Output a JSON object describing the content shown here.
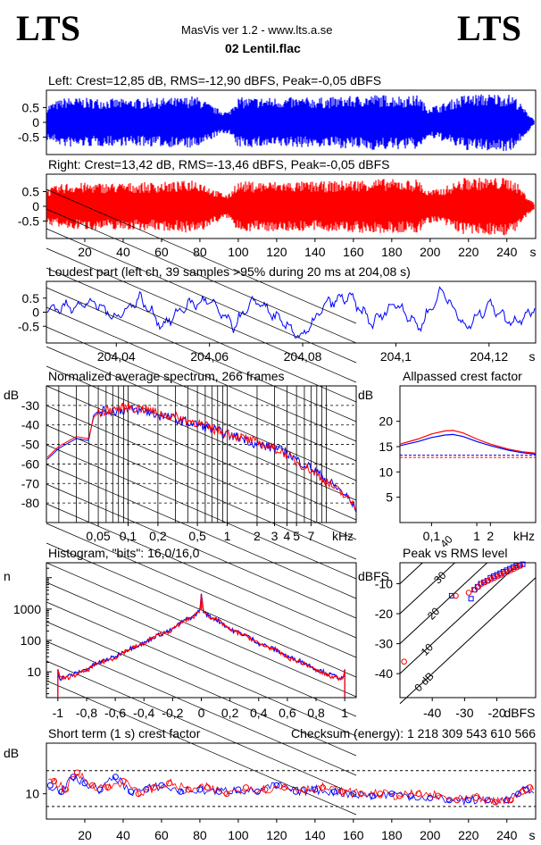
{
  "header": {
    "brand_left": "LTS",
    "brand_right": "LTS",
    "app": "MasVis ver 1.2 - www.lts.a.se",
    "file": "02 Lentil.flac"
  },
  "colors": {
    "left": "#0000ff",
    "right": "#ff0000",
    "bg": "#ffffff"
  },
  "chart_data": [
    {
      "id": "left-waveform",
      "type": "area",
      "title": "Left: Crest=12,85 dB, RMS=-12,90 dBFS, Peak=-0,05 dBFS",
      "y_ticks": [
        "0.5",
        "0",
        "-0.5"
      ],
      "ylim": [
        -1,
        1
      ],
      "xlim": [
        0,
        255
      ],
      "envelope_x": [
        0,
        10,
        40,
        70,
        76,
        80,
        88,
        95,
        99,
        120,
        145,
        160,
        172,
        190,
        194,
        198,
        205,
        212,
        218,
        232,
        240,
        244,
        250,
        255
      ],
      "envelope_y": [
        0.6,
        0.85,
        0.8,
        0.85,
        0.9,
        0.85,
        0.5,
        0.35,
        0.85,
        0.85,
        0.85,
        0.9,
        0.95,
        0.9,
        0.95,
        0.55,
        0.6,
        0.8,
        0.95,
        0.98,
        0.98,
        0.9,
        0.4,
        0.05
      ]
    },
    {
      "id": "right-waveform",
      "type": "area",
      "title": "Right: Crest=13,42 dB, RMS=-13,46 dBFS, Peak=-0,05 dBFS",
      "y_ticks": [
        "0.5",
        "0",
        "-0.5"
      ],
      "ylim": [
        -1,
        1
      ],
      "xlim": [
        0,
        255
      ],
      "x_ticks": [
        "20",
        "40",
        "60",
        "80",
        "100",
        "120",
        "140",
        "160",
        "180",
        "200",
        "220",
        "240"
      ],
      "x_unit": "s",
      "envelope_x": [
        0,
        10,
        40,
        70,
        76,
        80,
        88,
        95,
        99,
        120,
        145,
        160,
        172,
        190,
        194,
        198,
        205,
        212,
        218,
        232,
        240,
        244,
        250,
        255
      ],
      "envelope_y": [
        0.6,
        0.8,
        0.8,
        0.85,
        0.95,
        0.9,
        0.55,
        0.4,
        0.85,
        0.85,
        0.85,
        0.9,
        0.95,
        0.9,
        0.95,
        0.55,
        0.6,
        0.8,
        0.98,
        0.98,
        0.98,
        0.9,
        0.4,
        0.05
      ]
    },
    {
      "id": "loudest-part",
      "type": "line",
      "title": "Loudest part (left  ch, 39 samples >95% during 20 ms at 204,08 s)",
      "y_ticks": [
        "0.5",
        "0",
        "-0.5"
      ],
      "ylim": [
        -1,
        1
      ],
      "xlim": [
        204.025,
        204.13
      ],
      "x_ticks": [
        "204,04",
        "204,06",
        "204,08",
        "204,1",
        "204,12"
      ],
      "x_unit": "s",
      "x": [
        204.025,
        204.03,
        204.035,
        204.04,
        204.045,
        204.05,
        204.055,
        204.06,
        204.065,
        204.07,
        204.075,
        204.08,
        204.085,
        204.09,
        204.095,
        204.1,
        204.105,
        204.11,
        204.115,
        204.12,
        204.125,
        204.13
      ],
      "y": [
        0.1,
        0.2,
        0.35,
        -0.2,
        0.5,
        -0.5,
        0.25,
        0.4,
        -0.5,
        0.45,
        -0.3,
        -0.9,
        0.3,
        0.55,
        -0.4,
        0.35,
        -0.55,
        0.8,
        -0.6,
        0.3,
        -0.4,
        0.15
      ]
    },
    {
      "id": "avg-spectrum",
      "type": "line",
      "title": "Normalized average spectrum, 266 frames",
      "ylabel": "dB",
      "y_ticks": [
        "-30",
        "-40",
        "-50",
        "-60",
        "-70",
        "-80"
      ],
      "ylim": [
        -90,
        -20
      ],
      "x_ticks": [
        "0,05",
        "0,1",
        "0,2",
        "0,5",
        "1",
        "2",
        "3",
        "4",
        "5",
        "7"
      ],
      "x_unit": "kHz",
      "xlim": [
        0.015,
        20
      ],
      "log_x": true,
      "x": [
        0.015,
        0.02,
        0.03,
        0.04,
        0.045,
        0.05,
        0.07,
        0.1,
        0.15,
        0.2,
        0.3,
        0.5,
        0.7,
        1,
        1.5,
        2,
        3,
        4,
        5,
        7,
        10,
        15,
        20
      ],
      "series": [
        {
          "values": [
            -58,
            -52,
            -47,
            -48,
            -35,
            -33,
            -33,
            -32,
            -33,
            -35,
            -37,
            -40,
            -42,
            -45,
            -47,
            -50,
            -52,
            -54,
            -58,
            -62,
            -68,
            -75,
            -83
          ]
        },
        {
          "values": [
            -57,
            -51,
            -46,
            -47,
            -36,
            -34,
            -32,
            -31,
            -32,
            -34,
            -36,
            -39,
            -42,
            -44,
            -47,
            -49,
            -52,
            -55,
            -59,
            -63,
            -69,
            -76,
            -82
          ]
        }
      ]
    },
    {
      "id": "allpassed-crest",
      "type": "line",
      "title": "Allpassed crest factor",
      "ylabel": "dB",
      "y_ticks": [
        "20",
        "15",
        "10",
        "5"
      ],
      "ylim": [
        0,
        27
      ],
      "x_ticks": [
        "0,1",
        "1",
        "2"
      ],
      "x_unit": "kHz",
      "xlim": [
        0.02,
        20
      ],
      "log_x": true,
      "x": [
        0.02,
        0.05,
        0.1,
        0.2,
        0.3,
        0.5,
        1,
        2,
        5,
        10,
        20
      ],
      "series": [
        {
          "values": [
            15.2,
            16,
            16.8,
            17.3,
            17.4,
            17,
            16,
            15.2,
            14.3,
            13.8,
            13.5
          ]
        },
        {
          "values": [
            15.5,
            16.5,
            17.5,
            18.1,
            18.2,
            17.7,
            16.5,
            15.5,
            14.5,
            14,
            13.7
          ]
        }
      ],
      "ref_lines": [
        13.3,
        12.85
      ]
    },
    {
      "id": "histogram",
      "type": "line",
      "title": "Histogram, \"bits\": 16,0/16,0",
      "ylabel": "n",
      "y_ticks": [
        "1000",
        "100",
        "10"
      ],
      "log_y": true,
      "ylim": [
        1.5,
        30000
      ],
      "x_ticks": [
        "-1",
        "-0,8",
        "-0,6",
        "-0,4",
        "-0,2",
        "0",
        "0,2",
        "0,4",
        "0,6",
        "0,8",
        "1"
      ],
      "xlim": [
        -1.08,
        1.08
      ],
      "x": [
        -1,
        -0.99,
        -0.9,
        -0.8,
        -0.6,
        -0.4,
        -0.2,
        -0.05,
        -0.01,
        0,
        0.01,
        0.05,
        0.2,
        0.4,
        0.6,
        0.8,
        0.9,
        0.99,
        1
      ],
      "series": [
        {
          "values": [
            12,
            6,
            8,
            12,
            30,
            80,
            220,
            600,
            900,
            3000,
            900,
            600,
            220,
            80,
            30,
            12,
            8,
            6,
            12
          ]
        },
        {
          "values": [
            13,
            6,
            7,
            11,
            28,
            78,
            215,
            590,
            880,
            2800,
            880,
            590,
            215,
            78,
            28,
            11,
            7,
            6,
            13
          ]
        }
      ]
    },
    {
      "id": "peak-vs-rms",
      "type": "scatter",
      "title": "Peak vs RMS level",
      "ylabel": "dBFS",
      "y_ticks": [
        "-10",
        "-20",
        "-30",
        "-40"
      ],
      "ylim": [
        -48,
        -3
      ],
      "x_ticks": [
        "-40",
        "-30",
        "-20"
      ],
      "xlabel": "dBFS",
      "xlim": [
        -50,
        -8
      ],
      "diagonal_labels": [
        "40",
        "30",
        "20",
        "10",
        "0 dB"
      ],
      "series": [
        {
          "x": [
            -34,
            -28,
            -27,
            -26,
            -25,
            -24,
            -23,
            -22,
            -21,
            -20,
            -19,
            -18,
            -17,
            -16,
            -15,
            -14,
            -13,
            -12
          ],
          "y": [
            -14,
            -15,
            -12,
            -11,
            -10,
            -9.5,
            -9,
            -8,
            -7.5,
            -7,
            -6.5,
            -6,
            -5.5,
            -5,
            -4.5,
            -4,
            -4,
            -3.5
          ]
        },
        {
          "x": [
            -49,
            -33,
            -29,
            -27,
            -26,
            -25,
            -24,
            -23,
            -22,
            -21,
            -20,
            -19,
            -18,
            -17,
            -16,
            -15,
            -14,
            -13
          ],
          "y": [
            -36,
            -14,
            -13,
            -12,
            -11,
            -10,
            -9.5,
            -9,
            -8.5,
            -8,
            -7.5,
            -7,
            -6.5,
            -6,
            -5.5,
            -5,
            -4.5,
            -4
          ]
        }
      ]
    },
    {
      "id": "short-term-crest",
      "type": "scatter",
      "title": "Short term (1 s) crest factor",
      "checksum": "Checksum (energy):  1 218 309 543 610 566",
      "ylabel": "dB",
      "y_ticks": [
        "10"
      ],
      "ylim": [
        4,
        22
      ],
      "x_ticks": [
        "20",
        "40",
        "60",
        "80",
        "100",
        "120",
        "140",
        "160",
        "180",
        "200",
        "220",
        "240"
      ],
      "x_unit": "s",
      "xlim": [
        0,
        255
      ],
      "ref_lines": [
        15.5,
        7
      ],
      "series": [
        {
          "x": [
            2,
            8,
            14,
            20,
            28,
            36,
            44,
            52,
            60,
            70,
            80,
            90,
            100,
            110,
            120,
            130,
            140,
            150,
            160,
            170,
            180,
            190,
            200,
            210,
            220,
            230,
            240,
            246,
            250
          ],
          "y": [
            12,
            10.5,
            14,
            12.5,
            11,
            14,
            10.5,
            11,
            12,
            10.5,
            11,
            10.5,
            11,
            10.5,
            12,
            10.5,
            11,
            10.5,
            10,
            9.5,
            10,
            9.5,
            9,
            8.5,
            8.5,
            8.5,
            8.5,
            10,
            11
          ]
        },
        {
          "x": [
            4,
            10,
            16,
            24,
            32,
            40,
            48,
            56,
            64,
            74,
            84,
            94,
            104,
            114,
            124,
            134,
            144,
            154,
            164,
            174,
            184,
            194,
            204,
            214,
            224,
            234,
            242,
            248,
            252
          ],
          "y": [
            13,
            11,
            15,
            12,
            11.5,
            13,
            10,
            11.5,
            12.5,
            11,
            11.5,
            10,
            11.5,
            11,
            11.5,
            11,
            11.5,
            10.5,
            10,
            10,
            9.5,
            10,
            9.5,
            8.5,
            9,
            8,
            8.5,
            10.5,
            11.5
          ]
        }
      ]
    }
  ]
}
